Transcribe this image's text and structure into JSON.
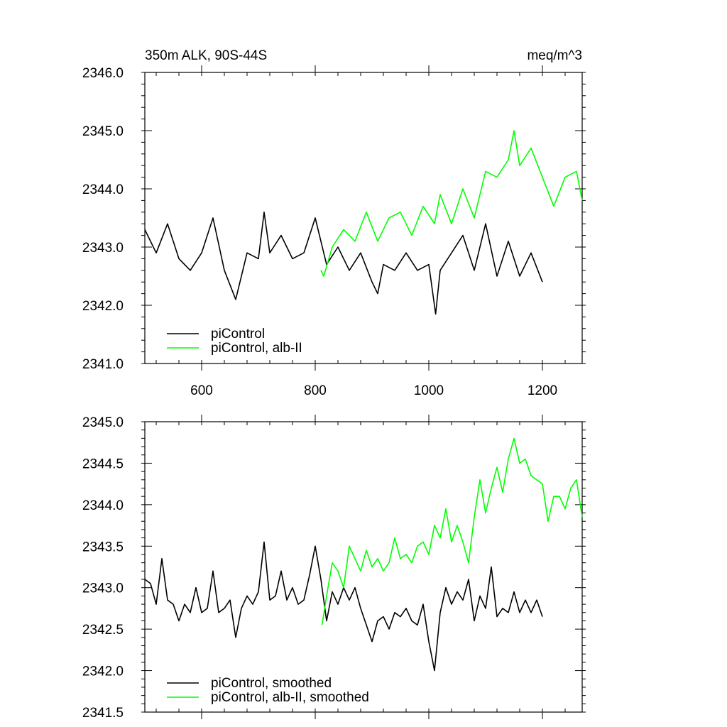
{
  "chart_data": [
    {
      "type": "line",
      "title_left": "350m ALK, 90S-44S",
      "title_right": "meq/m^3",
      "xlabel": "",
      "ylabel": "",
      "xlim": [
        500,
        1270
      ],
      "ylim": [
        2341.0,
        2346.0
      ],
      "x_ticks": [
        600,
        800,
        1000,
        1200
      ],
      "x_tick_labels": [
        "600",
        "800",
        "1000",
        "1200"
      ],
      "y_ticks": [
        2341.0,
        2342.0,
        2343.0,
        2344.0,
        2345.0,
        2346.0
      ],
      "y_tick_labels": [
        "2341.0",
        "2342.0",
        "2343.0",
        "2344.0",
        "2345.0",
        "2346.0"
      ],
      "grid": false,
      "legend_position": "bottom-left",
      "colors": {
        "piControl": "#000000",
        "alb-II": "#00ff00"
      },
      "series": [
        {
          "name": "piControl",
          "color": "#000000",
          "x": [
            500,
            520,
            540,
            560,
            580,
            600,
            620,
            640,
            660,
            680,
            700,
            710,
            720,
            740,
            760,
            780,
            800,
            820,
            840,
            860,
            880,
            900,
            910,
            920,
            940,
            960,
            980,
            1000,
            1012,
            1020,
            1040,
            1060,
            1080,
            1100,
            1120,
            1140,
            1160,
            1180,
            1200
          ],
          "y": [
            2343.3,
            2342.9,
            2343.4,
            2342.8,
            2342.6,
            2342.9,
            2343.5,
            2342.6,
            2342.1,
            2342.9,
            2342.8,
            2343.6,
            2342.9,
            2343.2,
            2342.8,
            2342.9,
            2343.5,
            2342.7,
            2343.0,
            2342.6,
            2342.9,
            2342.4,
            2342.2,
            2342.7,
            2342.6,
            2342.9,
            2342.6,
            2342.7,
            2341.85,
            2342.6,
            2342.9,
            2343.2,
            2342.6,
            2343.4,
            2342.5,
            2343.1,
            2342.5,
            2342.9,
            2342.4
          ]
        },
        {
          "name": "piControl, alb-II",
          "color": "#00ff00",
          "x": [
            810,
            815,
            830,
            850,
            870,
            890,
            910,
            930,
            950,
            970,
            990,
            1010,
            1020,
            1040,
            1060,
            1080,
            1100,
            1120,
            1140,
            1150,
            1160,
            1180,
            1200,
            1220,
            1240,
            1260,
            1270
          ],
          "y": [
            2342.6,
            2342.5,
            2343.0,
            2343.3,
            2343.1,
            2343.6,
            2343.1,
            2343.5,
            2343.6,
            2343.2,
            2343.7,
            2343.4,
            2343.9,
            2343.4,
            2344.0,
            2343.5,
            2344.3,
            2344.2,
            2344.5,
            2345.0,
            2344.4,
            2344.7,
            2344.2,
            2343.7,
            2344.2,
            2344.3,
            2343.8
          ]
        }
      ]
    },
    {
      "type": "line",
      "xlabel": "",
      "ylabel": "",
      "xlim": [
        500,
        1270
      ],
      "ylim": [
        2341.5,
        2345.0
      ],
      "x_ticks": [
        600,
        800,
        1000,
        1200
      ],
      "y_ticks": [
        2341.5,
        2342.0,
        2342.5,
        2343.0,
        2343.5,
        2344.0,
        2344.5,
        2345.0
      ],
      "y_tick_labels": [
        "2341.5",
        "2342.0",
        "2342.5",
        "2343.0",
        "2343.5",
        "2344.0",
        "2344.5",
        "2345.0"
      ],
      "grid": false,
      "legend_position": "bottom-left",
      "colors": {
        "piControl": "#000000",
        "alb-II": "#00ff00"
      },
      "series": [
        {
          "name": "piControl, smoothed",
          "color": "#000000",
          "x": [
            500,
            510,
            520,
            530,
            540,
            550,
            560,
            570,
            580,
            590,
            600,
            610,
            620,
            630,
            640,
            650,
            660,
            670,
            680,
            690,
            700,
            710,
            720,
            730,
            740,
            750,
            760,
            770,
            780,
            790,
            800,
            810,
            820,
            830,
            840,
            850,
            860,
            870,
            880,
            890,
            900,
            910,
            920,
            930,
            940,
            950,
            960,
            970,
            980,
            990,
            1000,
            1010,
            1020,
            1030,
            1040,
            1050,
            1060,
            1070,
            1080,
            1090,
            1100,
            1110,
            1120,
            1130,
            1140,
            1150,
            1160,
            1170,
            1180,
            1190,
            1200
          ],
          "y": [
            2343.1,
            2343.05,
            2342.8,
            2343.35,
            2342.85,
            2342.8,
            2342.6,
            2342.8,
            2342.7,
            2343.0,
            2342.7,
            2342.75,
            2343.2,
            2342.7,
            2342.75,
            2342.85,
            2342.4,
            2342.75,
            2342.9,
            2342.8,
            2342.95,
            2343.55,
            2342.85,
            2342.9,
            2343.2,
            2342.85,
            2343.0,
            2342.8,
            2342.85,
            2343.15,
            2343.5,
            2343.1,
            2342.6,
            2342.95,
            2342.8,
            2343.0,
            2342.85,
            2343.0,
            2342.75,
            2342.55,
            2342.35,
            2342.6,
            2342.65,
            2342.5,
            2342.7,
            2342.65,
            2342.75,
            2342.6,
            2342.55,
            2342.8,
            2342.35,
            2342.0,
            2342.7,
            2343.0,
            2342.8,
            2342.95,
            2342.85,
            2343.1,
            2342.6,
            2342.9,
            2342.75,
            2343.25,
            2342.65,
            2342.75,
            2342.7,
            2342.95,
            2342.7,
            2342.85,
            2342.7,
            2342.85,
            2342.65
          ]
        },
        {
          "name": "piControl, alb-II, smoothed",
          "color": "#00ff00",
          "x": [
            812,
            820,
            830,
            840,
            850,
            860,
            870,
            880,
            890,
            900,
            910,
            920,
            930,
            940,
            950,
            960,
            970,
            980,
            990,
            1000,
            1010,
            1020,
            1030,
            1040,
            1050,
            1060,
            1070,
            1080,
            1090,
            1100,
            1110,
            1120,
            1130,
            1140,
            1150,
            1160,
            1170,
            1180,
            1190,
            1200,
            1210,
            1220,
            1230,
            1240,
            1250,
            1260,
            1270
          ],
          "y": [
            2342.55,
            2342.9,
            2343.3,
            2343.2,
            2343.0,
            2343.5,
            2343.35,
            2343.2,
            2343.45,
            2343.25,
            2343.35,
            2343.2,
            2343.3,
            2343.6,
            2343.35,
            2343.4,
            2343.3,
            2343.5,
            2343.55,
            2343.4,
            2343.75,
            2343.6,
            2343.95,
            2343.55,
            2343.75,
            2343.55,
            2343.3,
            2343.85,
            2344.3,
            2343.9,
            2344.2,
            2344.45,
            2344.15,
            2344.55,
            2344.8,
            2344.5,
            2344.55,
            2344.35,
            2344.3,
            2344.25,
            2343.8,
            2344.1,
            2344.1,
            2343.95,
            2344.2,
            2344.3,
            2343.85
          ]
        }
      ]
    }
  ]
}
